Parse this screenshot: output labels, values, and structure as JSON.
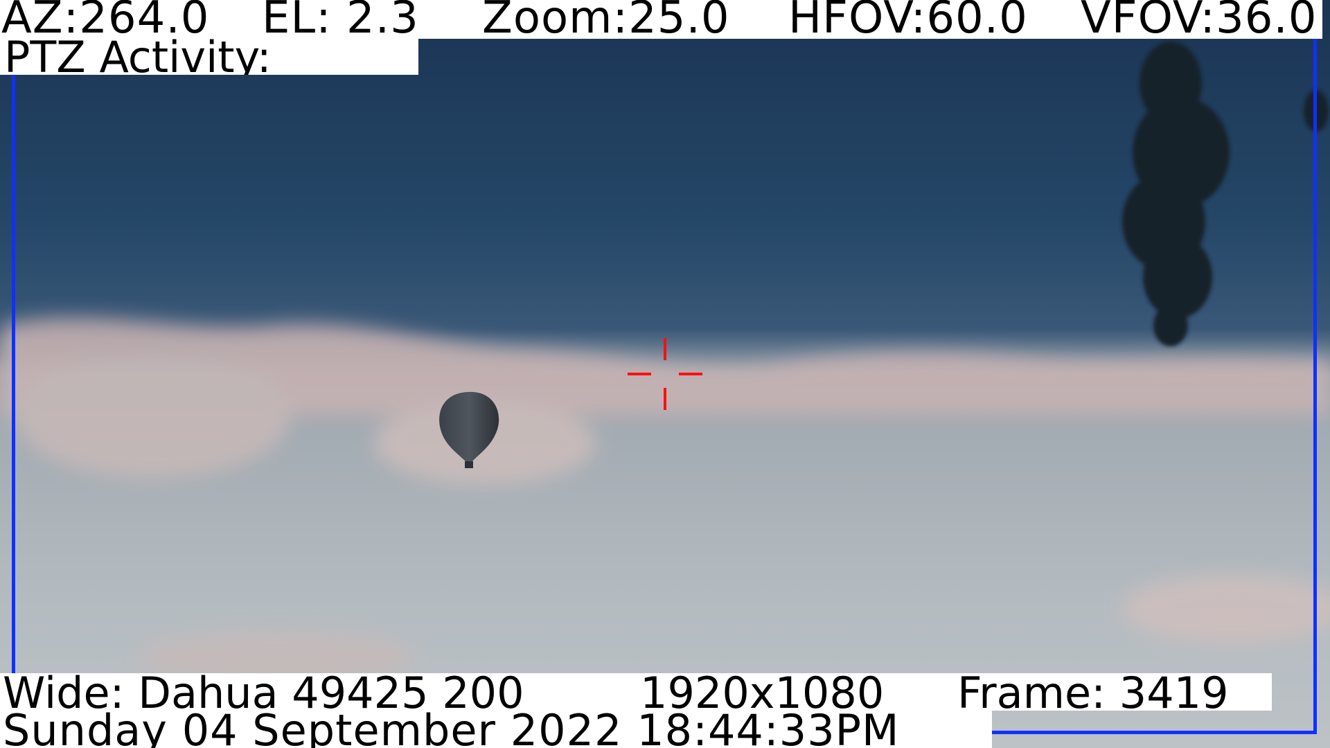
{
  "telemetry": {
    "azimuth": "AZ:264.0",
    "elevation": "EL: 2.3",
    "zoom": "Zoom:25.0",
    "hfov": "HFOV:60.0",
    "vfov": "VFOV:36.0"
  },
  "ptz": {
    "activity_label": "PTZ Activity:"
  },
  "camera": {
    "wide": "Wide: Dahua 49425 200",
    "resolution": "1920x1080",
    "frame": "Frame: 3419"
  },
  "timestamp": {
    "datetime": "Sunday 04 September 2022 18:44:33PM"
  },
  "colors": {
    "osd_background": "#ffffff",
    "osd_text": "#000000",
    "frame_border": "#1030ff",
    "reticle": "#ff1010",
    "sky_top": "#1b3556",
    "sky_bottom": "#b9c1c6"
  },
  "icons": {
    "reticle": "crosshair-icon",
    "target": "hot-air-balloon"
  }
}
